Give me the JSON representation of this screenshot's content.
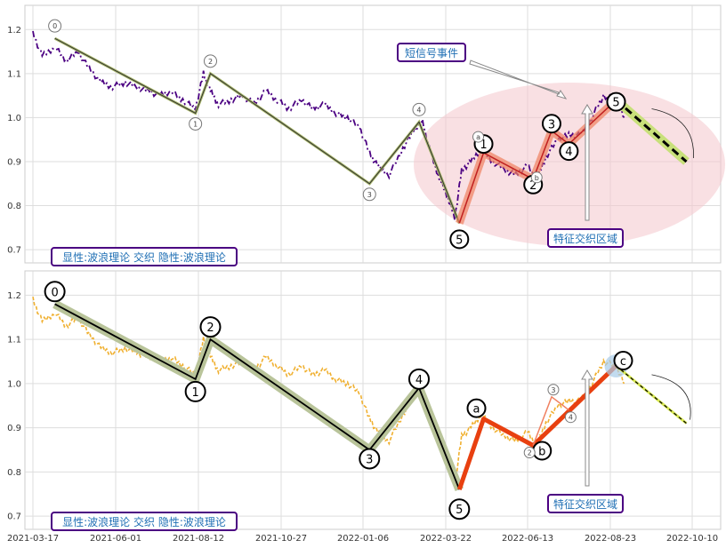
{
  "chart_data": [
    {
      "type": "line",
      "panel": "top",
      "ylim": [
        0.67,
        1.255
      ],
      "yticks": [
        0.7,
        0.8,
        0.9,
        1.0,
        1.1,
        1.2
      ],
      "ytick_labels": [
        "0.7",
        "0.8",
        "0.9",
        "1.0",
        "1.1",
        "1.2"
      ],
      "price_color": "#4b0082",
      "price_style": "dashdot",
      "price_series": {
        "dates": [
          "2021-03-17",
          "2021-03-25",
          "2021-04-05",
          "2021-04-15",
          "2021-04-25",
          "2021-05-05",
          "2021-05-15",
          "2021-05-25",
          "2021-06-05",
          "2021-06-15",
          "2021-06-25",
          "2021-07-05",
          "2021-07-15",
          "2021-07-25",
          "2021-08-05",
          "2021-08-12",
          "2021-08-18",
          "2021-08-25",
          "2021-09-05",
          "2021-09-15",
          "2021-09-25",
          "2021-10-05",
          "2021-10-15",
          "2021-10-25",
          "2021-11-05",
          "2021-11-15",
          "2021-11-25",
          "2021-12-05",
          "2021-12-15",
          "2021-12-25",
          "2022-01-03",
          "2022-01-10",
          "2022-01-20",
          "2022-02-01",
          "2022-02-10",
          "2022-02-18",
          "2022-02-25",
          "2022-03-05",
          "2022-03-12",
          "2022-03-18",
          "2022-03-24",
          "2022-04-01",
          "2022-04-10",
          "2022-04-20",
          "2022-05-01",
          "2022-05-10",
          "2022-05-20",
          "2022-05-28",
          "2022-06-05",
          "2022-06-15",
          "2022-06-25",
          "2022-07-05",
          "2022-07-15",
          "2022-07-25",
          "2022-08-05",
          "2022-08-12"
        ],
        "values": [
          1.19,
          1.14,
          1.16,
          1.13,
          1.15,
          1.11,
          1.08,
          1.07,
          1.08,
          1.07,
          1.06,
          1.05,
          1.06,
          1.04,
          1.02,
          1.1,
          1.06,
          1.03,
          1.04,
          1.05,
          1.03,
          1.06,
          1.04,
          1.02,
          1.04,
          1.02,
          1.03,
          1.01,
          1.0,
          0.98,
          0.92,
          0.89,
          0.87,
          0.93,
          0.97,
          0.99,
          0.92,
          0.86,
          0.82,
          0.77,
          0.88,
          0.9,
          0.93,
          0.9,
          0.88,
          0.87,
          0.89,
          0.86,
          0.91,
          0.95,
          0.96,
          0.96,
          1.0,
          1.05,
          1.04,
          1.0
        ]
      },
      "wave_main": {
        "dates": [
          "2021-04-05",
          "2021-08-05",
          "2021-08-18",
          "2022-01-03",
          "2022-02-15",
          "2022-03-22"
        ],
        "values": [
          1.18,
          1.01,
          1.1,
          0.85,
          0.99,
          0.76
        ],
        "labels": [
          "0",
          "1",
          "2",
          "3",
          "4",
          "5"
        ]
      },
      "wave_sub": {
        "dates": [
          "2022-03-22",
          "2022-04-12",
          "2022-05-25",
          "2022-06-10",
          "2022-06-25",
          "2022-08-05"
        ],
        "values": [
          0.76,
          0.92,
          0.86,
          0.97,
          0.94,
          1.04
        ],
        "labels": [
          "0",
          "1",
          "2",
          "3",
          "4",
          "5"
        ]
      },
      "wave_sub_secondary_labels": [
        "a",
        "b"
      ],
      "prediction": {
        "dates": [
          "2022-08-05",
          "2022-10-05"
        ],
        "values": [
          1.04,
          0.9
        ]
      },
      "annotations": {
        "legend_text": "显性:波浪理论 交织 隐性:波浪理论",
        "short_signal": "短信号事件",
        "feature_zone": "特征交织区域"
      }
    },
    {
      "type": "line",
      "panel": "bottom",
      "ylim": [
        0.67,
        1.255
      ],
      "yticks": [
        0.7,
        0.8,
        0.9,
        1.0,
        1.1,
        1.2
      ],
      "ytick_labels": [
        "0.7",
        "0.8",
        "0.9",
        "1.0",
        "1.1",
        "1.2"
      ],
      "price_color": "#f0b030",
      "price_style": "dashed",
      "wave_main": {
        "dates": [
          "2021-04-05",
          "2021-08-05",
          "2021-08-18",
          "2022-01-03",
          "2022-02-15",
          "2022-03-22"
        ],
        "values": [
          1.18,
          1.01,
          1.1,
          0.85,
          0.99,
          0.76
        ],
        "labels": [
          "0",
          "1",
          "2",
          "3",
          "4",
          "5"
        ]
      },
      "wave_abc": {
        "dates": [
          "2022-03-22",
          "2022-04-12",
          "2022-05-25",
          "2022-08-05"
        ],
        "values": [
          0.76,
          0.92,
          0.86,
          1.04
        ],
        "labels": [
          "a",
          "b",
          "c"
        ]
      },
      "minor_wave": {
        "dates": [
          "2022-05-25",
          "2022-06-10",
          "2022-06-25"
        ],
        "values": [
          0.86,
          0.97,
          0.94
        ],
        "labels": [
          "2",
          "3",
          "4"
        ]
      },
      "prediction": {
        "dates": [
          "2022-08-05",
          "2022-10-05"
        ],
        "values": [
          1.04,
          0.91
        ]
      },
      "annotations": {
        "legend_text": "显性:波浪理论 交织 隐性:波浪理论",
        "feature_zone": "特征交织区域"
      }
    }
  ],
  "x_axis": {
    "ticks": [
      "2021-03-17",
      "2021-06-01",
      "2021-08-12",
      "2021-10-27",
      "2022-01-06",
      "2022-03-22",
      "2022-06-13",
      "2022-08-23",
      "2022-10-10"
    ]
  }
}
